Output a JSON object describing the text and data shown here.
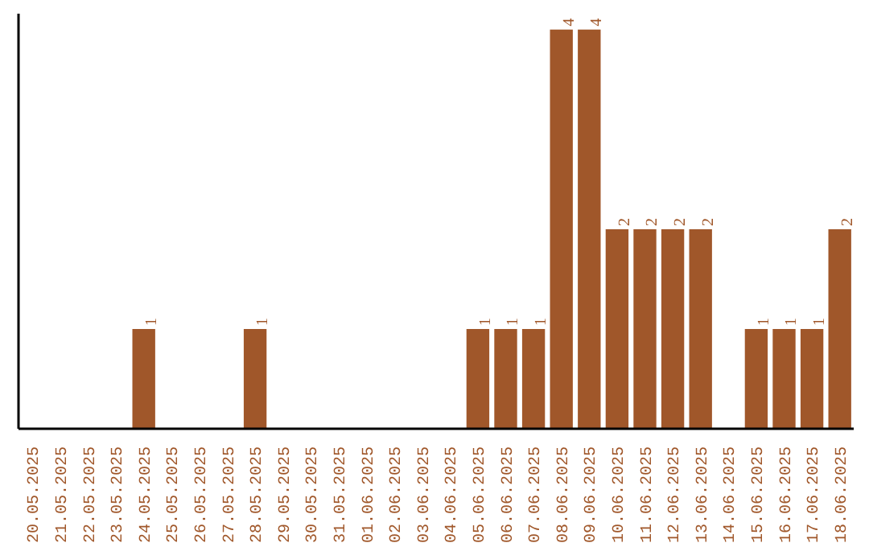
{
  "chart_data": {
    "type": "bar",
    "categories": [
      "20.05.2025",
      "21.05.2025",
      "22.05.2025",
      "23.05.2025",
      "24.05.2025",
      "25.05.2025",
      "26.05.2025",
      "27.05.2025",
      "28.05.2025",
      "29.05.2025",
      "30.05.2025",
      "31.05.2025",
      "01.06.2025",
      "02.06.2025",
      "03.06.2025",
      "04.06.2025",
      "05.06.2025",
      "06.06.2025",
      "07.06.2025",
      "08.06.2025",
      "09.06.2025",
      "10.06.2025",
      "11.06.2025",
      "12.06.2025",
      "13.06.2025",
      "14.06.2025",
      "15.06.2025",
      "16.06.2025",
      "17.06.2025",
      "18.06.2025"
    ],
    "values": [
      0,
      0,
      0,
      0,
      1,
      0,
      0,
      0,
      1,
      0,
      0,
      0,
      0,
      0,
      0,
      0,
      1,
      1,
      1,
      4,
      4,
      2,
      2,
      2,
      2,
      0,
      1,
      1,
      1,
      2
    ],
    "value_labels": [
      null,
      null,
      null,
      null,
      "1",
      null,
      null,
      null,
      "1",
      null,
      null,
      null,
      null,
      null,
      null,
      null,
      "1",
      "1",
      "1",
      "4",
      "4",
      "2",
      "2",
      "2",
      "2",
      null,
      "1",
      "1",
      "1",
      "2"
    ],
    "color": "#a0572a",
    "grid": false,
    "tick_labels": "x"
  }
}
